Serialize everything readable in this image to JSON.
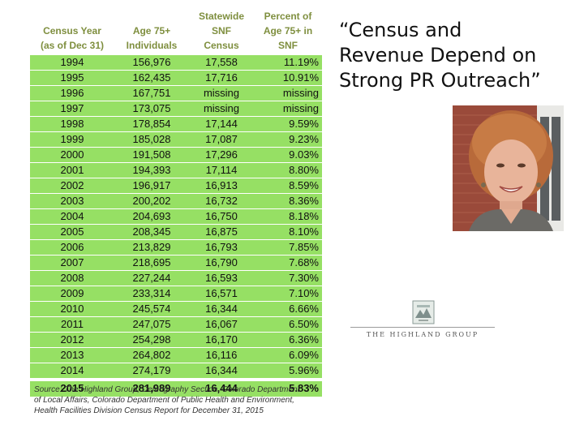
{
  "title": {
    "line1": "“Census and",
    "line2": "Revenue Depend on",
    "line3": "Strong PR Outreach”"
  },
  "table": {
    "headers": {
      "col1": [
        "",
        "Census Year",
        "(as of Dec 31)"
      ],
      "col2": [
        "",
        "Age 75+",
        "Individuals"
      ],
      "col3": [
        "Statewide",
        "SNF",
        "Census"
      ],
      "col4": [
        "Percent of",
        "Age 75+ in",
        "SNF"
      ]
    },
    "rows": [
      {
        "year": "1994",
        "age75": "156,976",
        "snf": "17,558",
        "pct": "11.19%"
      },
      {
        "year": "1995",
        "age75": "162,435",
        "snf": "17,716",
        "pct": "10.91%"
      },
      {
        "year": "1996",
        "age75": "167,751",
        "snf": "missing",
        "pct": "missing"
      },
      {
        "year": "1997",
        "age75": "173,075",
        "snf": "missing",
        "pct": "missing"
      },
      {
        "year": "1998",
        "age75": "178,854",
        "snf": "17,144",
        "pct": "9.59%"
      },
      {
        "year": "1999",
        "age75": "185,028",
        "snf": "17,087",
        "pct": "9.23%"
      },
      {
        "year": "2000",
        "age75": "191,508",
        "snf": "17,296",
        "pct": "9.03%"
      },
      {
        "year": "2001",
        "age75": "194,393",
        "snf": "17,114",
        "pct": "8.80%"
      },
      {
        "year": "2002",
        "age75": "196,917",
        "snf": "16,913",
        "pct": "8.59%"
      },
      {
        "year": "2003",
        "age75": "200,202",
        "snf": "16,732",
        "pct": "8.36%"
      },
      {
        "year": "2004",
        "age75": "204,693",
        "snf": "16,750",
        "pct": "8.18%"
      },
      {
        "year": "2005",
        "age75": "208,345",
        "snf": "16,875",
        "pct": "8.10%"
      },
      {
        "year": "2006",
        "age75": "213,829",
        "snf": "16,793",
        "pct": "7.85%"
      },
      {
        "year": "2007",
        "age75": "218,695",
        "snf": "16,790",
        "pct": "7.68%"
      },
      {
        "year": "2008",
        "age75": "227,244",
        "snf": "16,593",
        "pct": "7.30%"
      },
      {
        "year": "2009",
        "age75": "233,314",
        "snf": "16,571",
        "pct": "7.10%"
      },
      {
        "year": "2010",
        "age75": "245,574",
        "snf": "16,344",
        "pct": "6.66%"
      },
      {
        "year": "2011",
        "age75": "247,075",
        "snf": "16,067",
        "pct": "6.50%"
      },
      {
        "year": "2012",
        "age75": "254,298",
        "snf": "16,170",
        "pct": "6.36%"
      },
      {
        "year": "2013",
        "age75": "264,802",
        "snf": "16,116",
        "pct": "6.09%"
      },
      {
        "year": "2014",
        "age75": "274,179",
        "snf": "16,344",
        "pct": "5.96%"
      }
    ],
    "total_row": {
      "year": "2015",
      "age75": "281,989",
      "snf": "16,444",
      "pct": "5.83%"
    }
  },
  "source": {
    "line1": "Source: The Highland Group; Demography Section, Colorado Department",
    "line2": "of Local Affairs, Colorado Department of Public Health and Environment,",
    "line3": "Health Facilities Division Census Report for December 31, 2015"
  },
  "logo": {
    "text": "THE HIGHLAND GROUP"
  },
  "colors": {
    "row_fill": "#96e064",
    "header_text": "#7f8f3f",
    "body_text": "#111111"
  }
}
